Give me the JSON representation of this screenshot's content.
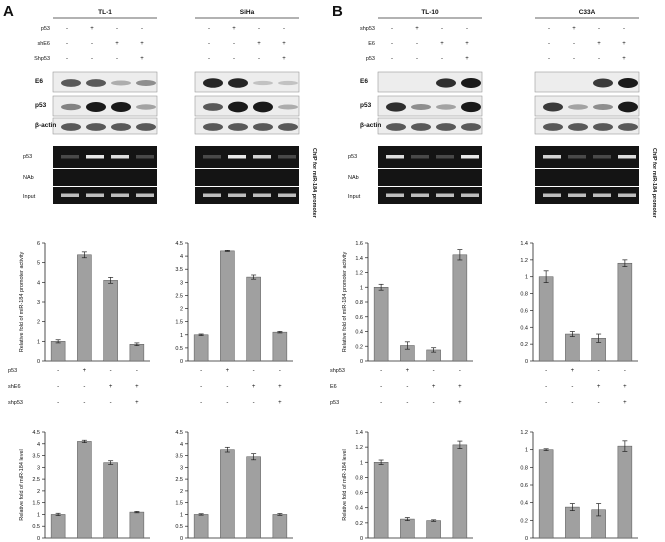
{
  "figure": {
    "panel_labels": [
      "A",
      "B"
    ],
    "blot_rows": [
      "E6",
      "p53",
      "β-actin"
    ],
    "chip_rows": [
      "p53",
      "NAb",
      "Input"
    ],
    "chip_side_label": "ChIP for miR-184 promoter"
  },
  "panels": [
    {
      "id": "TL-1",
      "side": "A",
      "treat": [
        {
          "name": "p53",
          "v": [
            "-",
            "+",
            "-",
            "-"
          ]
        },
        {
          "name": "shE6",
          "v": [
            "-",
            "-",
            "+",
            "+"
          ]
        },
        {
          "name": "Shp53",
          "v": [
            "-",
            "-",
            "-",
            "+"
          ]
        }
      ],
      "e6": [
        0.55,
        0.55,
        0.15,
        0.3
      ],
      "p53": [
        0.35,
        0.85,
        0.85,
        0.2
      ],
      "chip": [
        0.05,
        0.8,
        0.75,
        0.05
      ],
      "nab": [
        0,
        0,
        0,
        0
      ]
    },
    {
      "id": "SiHa",
      "side": "A",
      "treat": [
        {
          "name": "p53",
          "v": [
            "-",
            "+",
            "-",
            "-"
          ]
        },
        {
          "name": "shE6",
          "v": [
            "-",
            "-",
            "+",
            "+"
          ]
        },
        {
          "name": "Shp53",
          "v": [
            "-",
            "-",
            "-",
            "+"
          ]
        }
      ],
      "e6": [
        0.8,
        0.8,
        0.05,
        0.05
      ],
      "p53": [
        0.55,
        0.95,
        0.95,
        0.15
      ],
      "chip": [
        0.05,
        0.8,
        0.7,
        0.05
      ],
      "nab": [
        0,
        0,
        0,
        0
      ]
    },
    {
      "id": "TL-10",
      "side": "B",
      "treat": [
        {
          "name": "shp53",
          "v": [
            "-",
            "+",
            "-",
            "-"
          ]
        },
        {
          "name": "E6",
          "v": [
            "-",
            "-",
            "+",
            "+"
          ]
        },
        {
          "name": "p53",
          "v": [
            "-",
            "-",
            "-",
            "+"
          ]
        }
      ],
      "e6": [
        0,
        0,
        0.75,
        0.85
      ],
      "p53": [
        0.75,
        0.3,
        0.2,
        0.9
      ],
      "chip": [
        0.75,
        0.05,
        0.05,
        0.8
      ],
      "nab": [
        0,
        0,
        0,
        0
      ]
    },
    {
      "id": "C33A",
      "side": "B",
      "treat": [
        {
          "name": "shp53",
          "v": [
            "-",
            "+",
            "-",
            "-"
          ]
        },
        {
          "name": "E6",
          "v": [
            "-",
            "-",
            "+",
            "+"
          ]
        },
        {
          "name": "p53",
          "v": [
            "-",
            "-",
            "-",
            "+"
          ]
        }
      ],
      "e6": [
        0,
        0,
        0.7,
        0.85
      ],
      "p53": [
        0.7,
        0.2,
        0.3,
        0.95
      ],
      "chip": [
        0.7,
        0.05,
        0.05,
        0.75
      ],
      "nab": [
        0,
        0,
        0,
        0
      ]
    }
  ],
  "chart_data": [
    {
      "type": "bar",
      "panel": "TL-1",
      "ylabel": "Relative fold of miR-184 promoter activity",
      "ylim": [
        0,
        6
      ],
      "yticks": [
        "0",
        "1",
        "2",
        "3",
        "4",
        "5",
        "6"
      ],
      "values": [
        1.0,
        5.4,
        4.1,
        0.85
      ],
      "errors": [
        0.08,
        0.15,
        0.15,
        0.07
      ]
    },
    {
      "type": "bar",
      "panel": "SiHa",
      "ylabel": "",
      "ylim": [
        0,
        4.5
      ],
      "yticks": [
        "0",
        "0.5",
        "1",
        "1.5",
        "2",
        "2.5",
        "3",
        "3.5",
        "4",
        "4.5"
      ],
      "values": [
        1.0,
        4.2,
        3.2,
        1.1
      ],
      "errors": [
        0.03,
        0.02,
        0.08,
        0.03
      ]
    },
    {
      "type": "bar",
      "panel": "TL-10",
      "ylabel": "Relative fold of miR-184 promoter activity",
      "ylim": [
        0,
        1.6
      ],
      "yticks": [
        "0",
        "0.2",
        "0.4",
        "0.6",
        "0.8",
        "1",
        "1.2",
        "1.4",
        "1.6"
      ],
      "values": [
        1.0,
        0.21,
        0.15,
        1.44
      ],
      "errors": [
        0.04,
        0.05,
        0.03,
        0.07
      ]
    },
    {
      "type": "bar",
      "panel": "C33A",
      "ylabel": "",
      "ylim": [
        0,
        1.4
      ],
      "yticks": [
        "0",
        "0.2",
        "0.4",
        "0.6",
        "0.8",
        "1",
        "1.2",
        "1.4"
      ],
      "values": [
        1.0,
        0.32,
        0.27,
        1.16
      ],
      "errors": [
        0.07,
        0.03,
        0.05,
        0.04
      ]
    },
    {
      "type": "bar",
      "panel": "TL-1",
      "ylabel": "Relative fold of miR-184 level",
      "ylim": [
        0,
        4.5
      ],
      "yticks": [
        "0",
        "0.5",
        "1",
        "1.5",
        "2",
        "2.5",
        "3",
        "3.5",
        "4",
        "4.5"
      ],
      "values": [
        1.0,
        4.1,
        3.2,
        1.1
      ],
      "errors": [
        0.05,
        0.05,
        0.08,
        0.03
      ]
    },
    {
      "type": "bar",
      "panel": "SiHa",
      "ylabel": "",
      "ylim": [
        0,
        4.5
      ],
      "yticks": [
        "0",
        "0.5",
        "1",
        "1.5",
        "2",
        "2.5",
        "3",
        "3.5",
        "4",
        "4.5"
      ],
      "values": [
        1.0,
        3.75,
        3.45,
        1.0
      ],
      "errors": [
        0.03,
        0.1,
        0.13,
        0.04
      ]
    },
    {
      "type": "bar",
      "panel": "TL-10",
      "ylabel": "Relative fold of miR-184 level",
      "ylim": [
        0,
        1.4
      ],
      "yticks": [
        "0",
        "0.2",
        "0.4",
        "0.6",
        "0.8",
        "1",
        "1.2",
        "1.4"
      ],
      "values": [
        1.0,
        0.25,
        0.23,
        1.23
      ],
      "errors": [
        0.03,
        0.02,
        0.01,
        0.05
      ]
    },
    {
      "type": "bar",
      "panel": "C33A",
      "ylabel": "",
      "ylim": [
        0,
        1.2
      ],
      "yticks": [
        "0",
        "0.2",
        "0.4",
        "0.6",
        "0.8",
        "1",
        "1.2"
      ],
      "values": [
        1.0,
        0.35,
        0.32,
        1.04
      ],
      "errors": [
        0.01,
        0.04,
        0.07,
        0.06
      ]
    }
  ],
  "chart_treatments": [
    {
      "side": "A",
      "rows": [
        {
          "name": "p53",
          "v": [
            "-",
            "+",
            "-",
            "-"
          ]
        },
        {
          "name": "shE6",
          "v": [
            "-",
            "-",
            "+",
            "+"
          ]
        },
        {
          "name": "shp53",
          "v": [
            "-",
            "-",
            "-",
            "+"
          ]
        }
      ]
    },
    {
      "side": "B",
      "rows": [
        {
          "name": "shp53",
          "v": [
            "-",
            "+",
            "-",
            "-"
          ]
        },
        {
          "name": "E6",
          "v": [
            "-",
            "-",
            "+",
            "+"
          ]
        },
        {
          "name": "p53",
          "v": [
            "-",
            "-",
            "-",
            "+"
          ]
        }
      ]
    }
  ],
  "colors": {
    "bar": "#a0a0a0",
    "bar_edge": "#555555",
    "axis": "#222222",
    "blot_bg": "#ededed",
    "band": "#1a1a1a",
    "gel_bg": "#141414",
    "gel_band": "#e8e8e8"
  }
}
